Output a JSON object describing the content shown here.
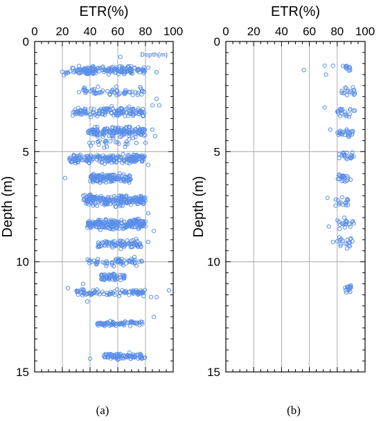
{
  "colors": {
    "marker": "#5a8ee8",
    "grid": "#9a9a9a",
    "frame": "#000000"
  },
  "chart_data": [
    {
      "type": "scatter",
      "panel_label": "(a)",
      "xlabel": "ETR(%)",
      "ylabel": "Depth (m)",
      "xlim": [
        0,
        100
      ],
      "ylim": [
        15,
        0
      ],
      "y_inverted": true,
      "x_axis_position": "top",
      "x_ticks": [
        "0",
        "20",
        "40",
        "60",
        "80",
        "100"
      ],
      "y_ticks": [
        "0",
        "5",
        "10",
        "15"
      ],
      "grid": true,
      "marker": "open circle",
      "series": [
        {
          "name": "Depth(m)",
          "clusters": [
            {
              "depth": 1.3,
              "x_min": 27,
              "x_max": 80,
              "count": 150,
              "y_spread": 0.25
            },
            {
              "depth": 1.4,
              "x_min": 18,
              "x_max": 40,
              "count": 16,
              "y_spread": 0.2
            },
            {
              "depth": 2.3,
              "x_min": 35,
              "x_max": 80,
              "count": 55,
              "y_spread": 0.3
            },
            {
              "depth": 3.2,
              "x_min": 27,
              "x_max": 80,
              "count": 130,
              "y_spread": 0.3
            },
            {
              "depth": 4.1,
              "x_min": 38,
              "x_max": 80,
              "count": 150,
              "y_spread": 0.3
            },
            {
              "depth": 4.6,
              "x_min": 36,
              "x_max": 75,
              "count": 25,
              "y_spread": 0.3
            },
            {
              "depth": 5.3,
              "x_min": 25,
              "x_max": 80,
              "count": 180,
              "y_spread": 0.3
            },
            {
              "depth": 6.2,
              "x_min": 40,
              "x_max": 70,
              "count": 120,
              "y_spread": 0.3
            },
            {
              "depth": 7.2,
              "x_min": 35,
              "x_max": 80,
              "count": 190,
              "y_spread": 0.35
            },
            {
              "depth": 8.3,
              "x_min": 38,
              "x_max": 80,
              "count": 200,
              "y_spread": 0.35
            },
            {
              "depth": 9.2,
              "x_min": 45,
              "x_max": 78,
              "count": 80,
              "y_spread": 0.3
            },
            {
              "depth": 10.0,
              "x_min": 38,
              "x_max": 78,
              "count": 60,
              "y_spread": 0.25
            },
            {
              "depth": 10.7,
              "x_min": 48,
              "x_max": 65,
              "count": 55,
              "y_spread": 0.25
            },
            {
              "depth": 11.4,
              "x_min": 30,
              "x_max": 80,
              "count": 90,
              "y_spread": 0.2
            },
            {
              "depth": 12.8,
              "x_min": 45,
              "x_max": 78,
              "count": 70,
              "y_spread": 0.15
            },
            {
              "depth": 14.3,
              "x_min": 50,
              "x_max": 80,
              "count": 80,
              "y_spread": 0.2
            }
          ],
          "outliers": [
            {
              "x": 62,
              "y": 0.7
            },
            {
              "x": 38,
              "y": 1.2
            },
            {
              "x": 82,
              "y": 1.2
            },
            {
              "x": 88,
              "y": 1.4
            },
            {
              "x": 32,
              "y": 2.3
            },
            {
              "x": 88,
              "y": 2.6
            },
            {
              "x": 85,
              "y": 2.9
            },
            {
              "x": 90,
              "y": 2.9
            },
            {
              "x": 85,
              "y": 4.0
            },
            {
              "x": 87,
              "y": 4.3
            },
            {
              "x": 80,
              "y": 4.6
            },
            {
              "x": 82,
              "y": 5.6
            },
            {
              "x": 22,
              "y": 6.2
            },
            {
              "x": 82,
              "y": 7.8
            },
            {
              "x": 86,
              "y": 8.6
            },
            {
              "x": 82,
              "y": 9.1
            },
            {
              "x": 24,
              "y": 11.2
            },
            {
              "x": 35,
              "y": 11.0
            },
            {
              "x": 84,
              "y": 11.6
            },
            {
              "x": 88,
              "y": 11.6
            },
            {
              "x": 97,
              "y": 11.3
            },
            {
              "x": 38,
              "y": 11.8
            },
            {
              "x": 86,
              "y": 12.5
            },
            {
              "x": 40,
              "y": 14.4
            }
          ]
        }
      ]
    },
    {
      "type": "scatter",
      "panel_label": "(b)",
      "xlabel": "ETR(%)",
      "ylabel": "Depth (m)",
      "xlim": [
        0,
        100
      ],
      "ylim": [
        15,
        0
      ],
      "y_inverted": true,
      "x_axis_position": "top",
      "x_ticks": [
        "0",
        "20",
        "40",
        "60",
        "80",
        "100"
      ],
      "y_ticks": [
        "0",
        "5",
        "10",
        "15"
      ],
      "grid": true,
      "marker": "open circle",
      "series": [
        {
          "name": "",
          "clusters": [
            {
              "depth": 1.2,
              "x_min": 84,
              "x_max": 90,
              "count": 10,
              "y_spread": 0.2
            },
            {
              "depth": 2.3,
              "x_min": 83,
              "x_max": 93,
              "count": 16,
              "y_spread": 0.3
            },
            {
              "depth": 3.2,
              "x_min": 80,
              "x_max": 93,
              "count": 20,
              "y_spread": 0.3
            },
            {
              "depth": 4.2,
              "x_min": 80,
              "x_max": 93,
              "count": 24,
              "y_spread": 0.3
            },
            {
              "depth": 5.2,
              "x_min": 80,
              "x_max": 92,
              "count": 22,
              "y_spread": 0.3
            },
            {
              "depth": 6.2,
              "x_min": 80,
              "x_max": 90,
              "count": 20,
              "y_spread": 0.3
            },
            {
              "depth": 7.3,
              "x_min": 78,
              "x_max": 88,
              "count": 16,
              "y_spread": 0.3
            },
            {
              "depth": 8.3,
              "x_min": 80,
              "x_max": 92,
              "count": 18,
              "y_spread": 0.3
            },
            {
              "depth": 9.1,
              "x_min": 80,
              "x_max": 92,
              "count": 16,
              "y_spread": 0.3
            },
            {
              "depth": 11.2,
              "x_min": 85,
              "x_max": 90,
              "count": 16,
              "y_spread": 0.3
            }
          ],
          "outliers": [
            {
              "x": 56,
              "y": 1.3
            },
            {
              "x": 71,
              "y": 1.1
            },
            {
              "x": 77,
              "y": 1.1
            },
            {
              "x": 72,
              "y": 1.5
            },
            {
              "x": 71,
              "y": 3.0
            },
            {
              "x": 75,
              "y": 4.0
            },
            {
              "x": 73,
              "y": 7.1
            },
            {
              "x": 74,
              "y": 8.4
            },
            {
              "x": 77,
              "y": 9.1
            },
            {
              "x": 85,
              "y": 8.0
            },
            {
              "x": 87,
              "y": 9.4
            },
            {
              "x": 89,
              "y": 9.3
            }
          ]
        }
      ]
    }
  ]
}
